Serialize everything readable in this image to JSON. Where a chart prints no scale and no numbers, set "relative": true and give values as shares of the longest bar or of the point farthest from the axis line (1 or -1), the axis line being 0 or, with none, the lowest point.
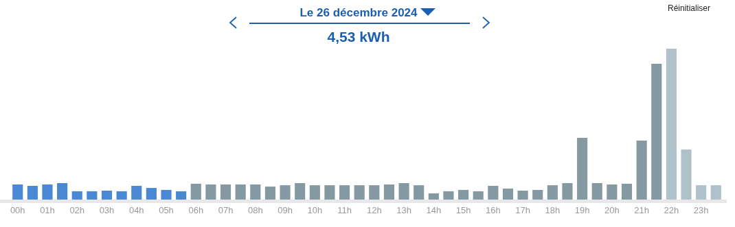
{
  "chart_data": {
    "type": "bar",
    "title": "Le 26 décembre 2024",
    "subtitle": "4,53 kWh",
    "annotations": [
      "Réinitialiser"
    ],
    "relative": true,
    "categories": [
      "00h",
      null,
      "01h",
      null,
      "02h",
      null,
      "03h",
      null,
      "04h",
      null,
      "05h",
      null,
      "06h",
      null,
      "07h",
      null,
      "08h",
      null,
      "09h",
      null,
      "10h",
      null,
      "11h",
      null,
      "12h",
      null,
      "13h",
      null,
      "14h",
      null,
      "15h",
      null,
      "16h",
      null,
      "17h",
      null,
      "18h",
      null,
      "19h",
      null,
      "20h",
      null,
      "21h",
      null,
      "22h",
      null,
      "23h",
      null
    ],
    "values": [
      0.1,
      0.091,
      0.1,
      0.109,
      0.055,
      0.055,
      0.059,
      0.055,
      0.091,
      0.077,
      0.064,
      0.055,
      0.105,
      0.1,
      0.1,
      0.1,
      0.1,
      0.086,
      0.095,
      0.109,
      0.095,
      0.095,
      0.095,
      0.095,
      0.095,
      0.1,
      0.109,
      0.095,
      0.041,
      0.055,
      0.064,
      0.055,
      0.091,
      0.073,
      0.059,
      0.064,
      0.095,
      0.109,
      0.409,
      0.109,
      0.1,
      0.105,
      0.391,
      0.9,
      1,
      0.332,
      0.095,
      0.095
    ],
    "colors": [
      "#4a88d4",
      "#4a88d4",
      "#4a88d4",
      "#4a88d4",
      "#4a88d4",
      "#4a88d4",
      "#4a88d4",
      "#4a88d4",
      "#4a88d4",
      "#4a88d4",
      "#4a88d4",
      "#4a88d4",
      "#8599a3",
      "#8599a3",
      "#8599a3",
      "#8599a3",
      "#8599a3",
      "#8599a3",
      "#8599a3",
      "#8599a3",
      "#8599a3",
      "#8599a3",
      "#8599a3",
      "#8599a3",
      "#8599a3",
      "#8599a3",
      "#8599a3",
      "#8599a3",
      "#8599a3",
      "#8599a3",
      "#8599a3",
      "#8599a3",
      "#8599a3",
      "#8599a3",
      "#8599a3",
      "#8599a3",
      "#8599a3",
      "#8599a3",
      "#8599a3",
      "#8599a3",
      "#8599a3",
      "#8599a3",
      "#8599a3",
      "#8599a3",
      "#afc1c9",
      "#afc1c9",
      "#afc1c9",
      "#afc1c9"
    ]
  }
}
